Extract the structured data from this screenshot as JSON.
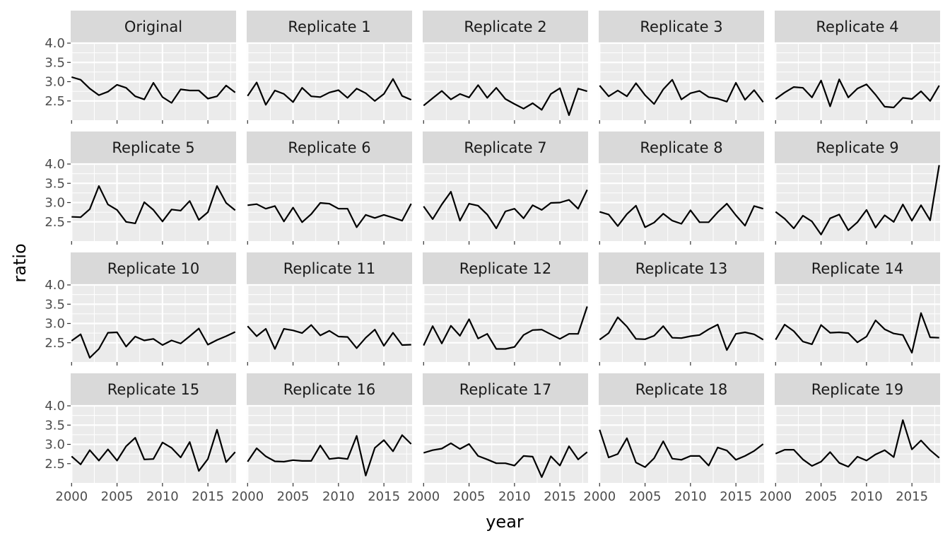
{
  "chart_data": {
    "type": "line",
    "facet_layout": "wrap",
    "xlabel": "year",
    "ylabel": "ratio",
    "xlim": [
      1999.9,
      2018.1
    ],
    "ylim": [
      2.0,
      4.0
    ],
    "x_ticks": [
      2000,
      2005,
      2010,
      2015
    ],
    "y_ticks": [
      2.5,
      3.0,
      3.5,
      4.0
    ],
    "x_tick_labels": [
      "2000",
      "2005",
      "2010",
      "2015"
    ],
    "y_tick_labels": [
      "2.5",
      "3.0",
      "3.5",
      "4.0"
    ],
    "x": [
      2000,
      2001,
      2002,
      2003,
      2004,
      2005,
      2006,
      2007,
      2008,
      2009,
      2010,
      2011,
      2012,
      2013,
      2014,
      2015,
      2016,
      2017,
      2018
    ],
    "grid": true,
    "panel_background": "#ebebeb",
    "strip_background": "#d9d9d9",
    "line_color": "#000000",
    "panels": [
      {
        "title": "Original",
        "values": [
          3.12,
          3.05,
          2.82,
          2.65,
          2.74,
          2.92,
          2.84,
          2.62,
          2.54,
          2.97,
          2.6,
          2.45,
          2.8,
          2.77,
          2.77,
          2.56,
          2.62,
          2.9,
          2.72
        ]
      },
      {
        "title": "Replicate 1",
        "values": [
          2.63,
          2.98,
          2.4,
          2.77,
          2.68,
          2.47,
          2.84,
          2.62,
          2.6,
          2.72,
          2.78,
          2.58,
          2.82,
          2.7,
          2.5,
          2.68,
          3.07,
          2.63,
          2.53
        ]
      },
      {
        "title": "Replicate 2",
        "values": [
          2.38,
          2.57,
          2.76,
          2.54,
          2.68,
          2.59,
          2.91,
          2.58,
          2.84,
          2.55,
          2.42,
          2.3,
          2.44,
          2.27,
          2.68,
          2.83,
          2.13,
          2.82,
          2.75
        ]
      },
      {
        "title": "Replicate 3",
        "values": [
          2.9,
          2.62,
          2.77,
          2.62,
          2.96,
          2.65,
          2.42,
          2.8,
          3.05,
          2.54,
          2.7,
          2.76,
          2.6,
          2.56,
          2.48,
          2.97,
          2.53,
          2.78,
          2.47
        ]
      },
      {
        "title": "Replicate 4",
        "values": [
          2.55,
          2.72,
          2.86,
          2.84,
          2.59,
          3.03,
          2.36,
          3.06,
          2.59,
          2.82,
          2.93,
          2.66,
          2.35,
          2.33,
          2.58,
          2.55,
          2.75,
          2.5,
          2.9
        ]
      },
      {
        "title": "Replicate 5",
        "values": [
          2.63,
          2.62,
          2.83,
          3.43,
          2.95,
          2.81,
          2.5,
          2.46,
          3.01,
          2.81,
          2.51,
          2.82,
          2.79,
          3.04,
          2.55,
          2.75,
          3.43,
          2.99,
          2.8
        ]
      },
      {
        "title": "Replicate 6",
        "values": [
          2.93,
          2.96,
          2.84,
          2.91,
          2.51,
          2.87,
          2.49,
          2.7,
          2.99,
          2.97,
          2.84,
          2.84,
          2.36,
          2.68,
          2.6,
          2.68,
          2.61,
          2.53,
          2.97
        ]
      },
      {
        "title": "Replicate 7",
        "values": [
          2.9,
          2.57,
          2.95,
          3.28,
          2.53,
          2.97,
          2.92,
          2.69,
          2.33,
          2.77,
          2.84,
          2.59,
          2.93,
          2.81,
          2.99,
          3.0,
          3.07,
          2.84,
          3.33
        ]
      },
      {
        "title": "Replicate 8",
        "values": [
          2.76,
          2.69,
          2.39,
          2.7,
          2.92,
          2.36,
          2.48,
          2.71,
          2.53,
          2.45,
          2.8,
          2.49,
          2.49,
          2.75,
          2.97,
          2.67,
          2.4,
          2.91,
          2.84
        ]
      },
      {
        "title": "Replicate 9",
        "values": [
          2.76,
          2.58,
          2.33,
          2.66,
          2.51,
          2.17,
          2.59,
          2.69,
          2.28,
          2.49,
          2.81,
          2.35,
          2.67,
          2.5,
          2.95,
          2.53,
          2.93,
          2.54,
          3.97
        ]
      },
      {
        "title": "Replicate 10",
        "values": [
          2.55,
          2.72,
          2.11,
          2.34,
          2.76,
          2.77,
          2.4,
          2.66,
          2.56,
          2.6,
          2.44,
          2.56,
          2.48,
          2.67,
          2.87,
          2.45,
          2.57,
          2.67,
          2.78
        ]
      },
      {
        "title": "Replicate 11",
        "values": [
          2.93,
          2.67,
          2.86,
          2.34,
          2.86,
          2.82,
          2.75,
          2.96,
          2.69,
          2.81,
          2.66,
          2.65,
          2.36,
          2.63,
          2.84,
          2.42,
          2.76,
          2.44,
          2.45
        ]
      },
      {
        "title": "Replicate 12",
        "values": [
          2.43,
          2.93,
          2.48,
          2.94,
          2.68,
          3.11,
          2.61,
          2.73,
          2.34,
          2.34,
          2.39,
          2.7,
          2.83,
          2.84,
          2.72,
          2.6,
          2.73,
          2.73,
          3.44
        ]
      },
      {
        "title": "Replicate 13",
        "values": [
          2.58,
          2.75,
          3.16,
          2.92,
          2.6,
          2.59,
          2.68,
          2.93,
          2.63,
          2.62,
          2.67,
          2.7,
          2.85,
          2.97,
          2.31,
          2.73,
          2.77,
          2.72,
          2.58
        ]
      },
      {
        "title": "Replicate 14",
        "values": [
          2.58,
          2.97,
          2.8,
          2.53,
          2.46,
          2.96,
          2.76,
          2.77,
          2.75,
          2.51,
          2.66,
          3.08,
          2.85,
          2.74,
          2.7,
          2.24,
          3.27,
          2.64,
          2.63
        ]
      },
      {
        "title": "Replicate 15",
        "values": [
          2.69,
          2.48,
          2.85,
          2.58,
          2.87,
          2.58,
          2.95,
          3.17,
          2.61,
          2.62,
          3.05,
          2.91,
          2.66,
          3.06,
          2.31,
          2.62,
          3.38,
          2.54,
          2.8
        ]
      },
      {
        "title": "Replicate 16",
        "values": [
          2.55,
          2.9,
          2.69,
          2.56,
          2.55,
          2.59,
          2.57,
          2.57,
          2.97,
          2.62,
          2.65,
          2.62,
          3.22,
          2.19,
          2.91,
          3.11,
          2.82,
          3.24,
          3.01
        ]
      },
      {
        "title": "Replicate 17",
        "values": [
          2.78,
          2.85,
          2.89,
          3.03,
          2.88,
          3.01,
          2.7,
          2.61,
          2.51,
          2.51,
          2.45,
          2.7,
          2.68,
          2.15,
          2.69,
          2.45,
          2.95,
          2.61,
          2.8
        ]
      },
      {
        "title": "Replicate 18",
        "values": [
          3.38,
          2.66,
          2.75,
          3.16,
          2.53,
          2.41,
          2.64,
          3.08,
          2.63,
          2.6,
          2.7,
          2.7,
          2.45,
          2.92,
          2.84,
          2.6,
          2.7,
          2.83,
          3.01
        ]
      },
      {
        "title": "Replicate 19",
        "values": [
          2.76,
          2.86,
          2.86,
          2.61,
          2.44,
          2.55,
          2.8,
          2.52,
          2.42,
          2.68,
          2.58,
          2.74,
          2.85,
          2.67,
          3.63,
          2.87,
          3.1,
          2.85,
          2.65
        ]
      }
    ]
  }
}
